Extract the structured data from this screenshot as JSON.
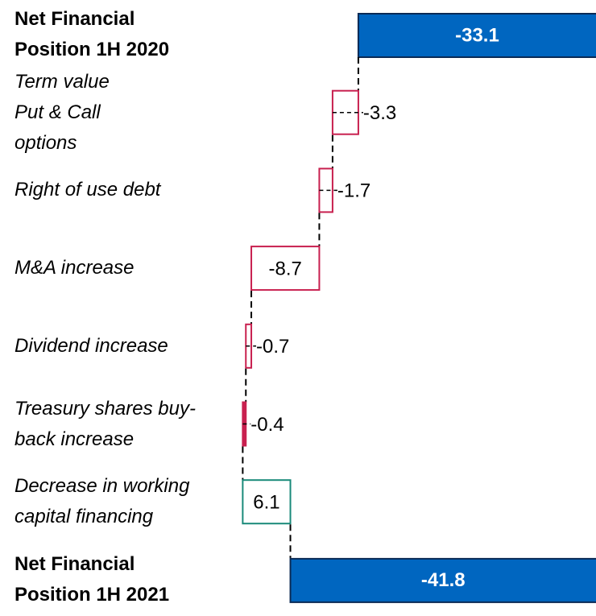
{
  "chart_data": {
    "type": "waterfall",
    "categories": [
      "Net Financial Position 1H 2020",
      "Term value Put & Call options",
      "Right of use debt",
      "M&A increase",
      "Dividend increase",
      "Treasury shares buy-back increase",
      "Decrease in working capital financing",
      "Net Financial Position 1H 2021"
    ],
    "values": [
      -33.1,
      -3.3,
      -1.7,
      -8.7,
      -0.7,
      -0.4,
      6.1,
      -41.8
    ],
    "colors": {
      "total": "#0066c0",
      "decrease": "#c8204f",
      "increase": "#1a8a7a"
    }
  }
}
